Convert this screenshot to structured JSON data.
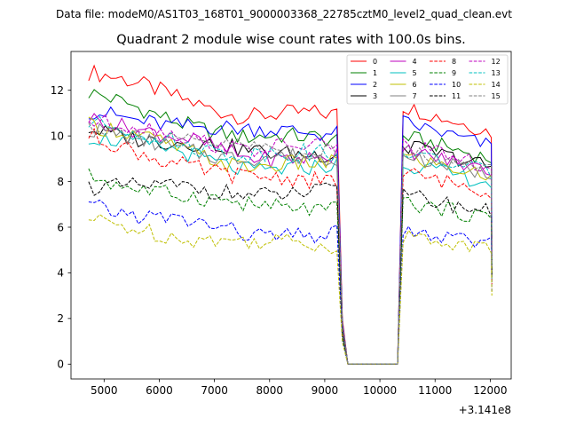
{
  "chart_data": {
    "type": "line",
    "suptitle": "Data file: modeM0/AS1T03_168T01_9000003368_22785cztM0_level2_quad_clean.evt",
    "title": "Quadrant 2 module wise count rates with 100.0s bins.",
    "xlabel": "",
    "ylabel": "",
    "x_offset_label": "+3.141e8",
    "xlim": [
      4400,
      12380
    ],
    "ylim": [
      -0.65,
      13.7
    ],
    "xticks": [
      5000,
      6000,
      7000,
      8000,
      9000,
      10000,
      11000,
      12000
    ],
    "xtick_labels": [
      "5000",
      "6000",
      "7000",
      "8000",
      "9000",
      "10000",
      "11000",
      "12000"
    ],
    "yticks": [
      0,
      2,
      4,
      6,
      8,
      10,
      12
    ],
    "ytick_labels": [
      "0",
      "2",
      "4",
      "6",
      "8",
      "10",
      "12"
    ],
    "legend_location": "upper right",
    "x_segments": {
      "seg1_start": 4720,
      "seg1_step": 100,
      "seg1_n": 46,
      "drop_times": [
        9320,
        9420
      ],
      "gap_end": 10320,
      "seg2_start": 10420,
      "seg2_step": 100,
      "seg2_n": 17,
      "end_time": 12030
    },
    "series": [
      {
        "name": "0",
        "color": "#ff0000",
        "dash": false,
        "start": 12.8,
        "level1": 10.9,
        "level2": 11.3,
        "end": 4.5
      },
      {
        "name": "1",
        "color": "#008000",
        "dash": false,
        "start": 11.8,
        "level1": 9.9,
        "level2": 10.0,
        "end": 5.0
      },
      {
        "name": "2",
        "color": "#0000ff",
        "dash": false,
        "start": 11.0,
        "level1": 10.2,
        "level2": 10.6,
        "end": 6.2
      },
      {
        "name": "3",
        "color": "#000000",
        "dash": false,
        "start": 10.3,
        "level1": 9.3,
        "level2": 9.6,
        "end": 5.5
      },
      {
        "name": "4",
        "color": "#bf00bf",
        "dash": false,
        "start": 10.9,
        "level1": 9.1,
        "level2": 9.4,
        "end": 4.6
      },
      {
        "name": "5",
        "color": "#00bfbf",
        "dash": false,
        "start": 10.1,
        "level1": 8.6,
        "level2": 8.8,
        "end": 3.6
      },
      {
        "name": "6",
        "color": "#bfbf00",
        "dash": false,
        "start": 10.5,
        "level1": 8.7,
        "level2": 9.1,
        "end": 4.2
      },
      {
        "name": "7",
        "color": "#808080",
        "dash": false,
        "start": 10.2,
        "level1": 9.0,
        "level2": 9.2,
        "end": 4.0
      },
      {
        "name": "8",
        "color": "#ff0000",
        "dash": true,
        "start": 9.9,
        "level1": 8.1,
        "level2": 8.4,
        "end": 3.5
      },
      {
        "name": "9",
        "color": "#008000",
        "dash": true,
        "start": 8.2,
        "level1": 6.9,
        "level2": 7.1,
        "end": 3.8
      },
      {
        "name": "10",
        "color": "#0000ff",
        "dash": true,
        "start": 7.0,
        "level1": 5.7,
        "level2": 5.8,
        "end": 3.2
      },
      {
        "name": "11",
        "color": "#000000",
        "dash": true,
        "start": 7.9,
        "level1": 7.5,
        "level2": 7.4,
        "end": 3.9
      },
      {
        "name": "12",
        "color": "#bf00bf",
        "dash": true,
        "start": 10.7,
        "level1": 9.5,
        "level2": 9.6,
        "end": 4.8
      },
      {
        "name": "13",
        "color": "#00bfbf",
        "dash": true,
        "start": 10.5,
        "level1": 9.2,
        "level2": 9.3,
        "end": 4.4
      },
      {
        "name": "14",
        "color": "#bfbf00",
        "dash": true,
        "start": 6.2,
        "level1": 5.3,
        "level2": 5.6,
        "end": 3.0
      },
      {
        "name": "15",
        "color": "#808080",
        "dash": true,
        "start": 10.4,
        "level1": 9.4,
        "level2": 9.4,
        "end": 4.3
      }
    ]
  }
}
